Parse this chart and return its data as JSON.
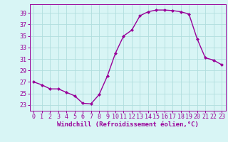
{
  "x": [
    0,
    1,
    2,
    3,
    4,
    5,
    6,
    7,
    8,
    9,
    10,
    11,
    12,
    13,
    14,
    15,
    16,
    17,
    18,
    19,
    20,
    21,
    22,
    23
  ],
  "y": [
    27,
    26.5,
    25.8,
    25.8,
    25.2,
    24.6,
    23.3,
    23.2,
    24.8,
    28.0,
    32.0,
    35.0,
    36.0,
    38.5,
    39.2,
    39.5,
    39.5,
    39.4,
    39.2,
    38.8,
    34.5,
    31.2,
    30.8,
    30.0
  ],
  "line_color": "#990099",
  "marker": "D",
  "markersize": 2.0,
  "linewidth": 1.0,
  "bg_color": "#d8f5f5",
  "grid_color": "#b0dede",
  "xlabel": "Windchill (Refroidissement éolien,°C)",
  "xlabel_fontsize": 6.5,
  "tick_fontsize": 6,
  "ylim": [
    22,
    40.5
  ],
  "xlim": [
    -0.5,
    23.5
  ],
  "yticks": [
    23,
    25,
    27,
    29,
    31,
    33,
    35,
    37,
    39
  ],
  "xticks": [
    0,
    1,
    2,
    3,
    4,
    5,
    6,
    7,
    8,
    9,
    10,
    11,
    12,
    13,
    14,
    15,
    16,
    17,
    18,
    19,
    20,
    21,
    22,
    23
  ]
}
